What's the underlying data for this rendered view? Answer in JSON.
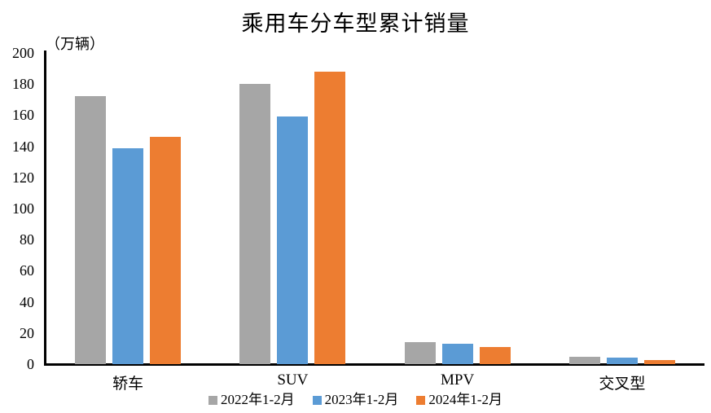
{
  "title": "乘用车分车型累计销量",
  "unit_label": "（万辆）",
  "axis_color": "#000000",
  "chart_data": {
    "type": "bar",
    "title": "乘用车分车型累计销量",
    "ylabel": "（万辆）",
    "xlabel": "",
    "categories": [
      "轿车",
      "SUV",
      "MPV",
      "交叉型"
    ],
    "series": [
      {
        "name": "2022年1-2月",
        "color": "#A6A6A6",
        "values": [
          172,
          180,
          14,
          4.8
        ]
      },
      {
        "name": "2023年1-2月",
        "color": "#5B9BD5",
        "values": [
          139,
          159,
          13,
          4.4
        ]
      },
      {
        "name": "2024年1-2月",
        "color": "#ED7D31",
        "values": [
          146,
          188,
          11,
          2.4
        ]
      }
    ],
    "ylim": [
      0,
      200
    ],
    "ytick_step": 20,
    "grid": false,
    "legend_position": "bottom"
  }
}
